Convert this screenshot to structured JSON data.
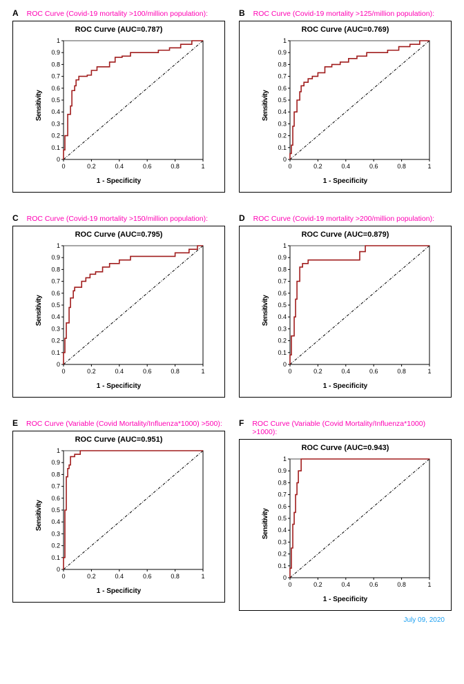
{
  "footer_date": "July 09, 2020",
  "axis_style": {
    "tick_fontsize": 9,
    "label_fontsize": 10,
    "title_fontsize": 11,
    "caption_fontsize": 10.5,
    "caption_color": "#ff00b3",
    "line_color": "#a01c1c",
    "line_width": 1.6,
    "diag_color": "#000000",
    "border_color": "#000000",
    "bg_color": "#ffffff",
    "footer_color": "#1ea1f2"
  },
  "common": {
    "xlabel": "1 - Specificity",
    "ylabel": "Sensitivity",
    "xlim": [
      0,
      1
    ],
    "ylim": [
      0,
      1
    ],
    "xticks": [
      0,
      0.2,
      0.4,
      0.6,
      0.8,
      1
    ],
    "yticks": [
      0,
      0.1,
      0.2,
      0.3,
      0.4,
      0.5,
      0.6,
      0.7,
      0.8,
      0.9,
      1
    ]
  },
  "panels": [
    {
      "letter": "A",
      "caption": "ROC Curve (Covid-19 mortality >100/million population):",
      "title": "ROC Curve (AUC=0.787)",
      "roc": [
        [
          0,
          0
        ],
        [
          0.01,
          0.08
        ],
        [
          0.03,
          0.2
        ],
        [
          0.05,
          0.38
        ],
        [
          0.06,
          0.45
        ],
        [
          0.08,
          0.58
        ],
        [
          0.09,
          0.62
        ],
        [
          0.11,
          0.67
        ],
        [
          0.14,
          0.7
        ],
        [
          0.17,
          0.7
        ],
        [
          0.2,
          0.71
        ],
        [
          0.24,
          0.75
        ],
        [
          0.28,
          0.78
        ],
        [
          0.33,
          0.78
        ],
        [
          0.37,
          0.82
        ],
        [
          0.42,
          0.86
        ],
        [
          0.48,
          0.87
        ],
        [
          0.54,
          0.9
        ],
        [
          0.6,
          0.9
        ],
        [
          0.68,
          0.9
        ],
        [
          0.76,
          0.92
        ],
        [
          0.84,
          0.94
        ],
        [
          0.92,
          0.97
        ],
        [
          1,
          1
        ]
      ]
    },
    {
      "letter": "B",
      "caption": "ROC Curve (Covid-19 mortality >125/million population):",
      "title": "ROC Curve (AUC=0.769)",
      "roc": [
        [
          0,
          0
        ],
        [
          0.01,
          0.05
        ],
        [
          0.02,
          0.12
        ],
        [
          0.03,
          0.28
        ],
        [
          0.05,
          0.4
        ],
        [
          0.07,
          0.5
        ],
        [
          0.08,
          0.57
        ],
        [
          0.1,
          0.62
        ],
        [
          0.13,
          0.65
        ],
        [
          0.16,
          0.68
        ],
        [
          0.2,
          0.7
        ],
        [
          0.25,
          0.73
        ],
        [
          0.3,
          0.78
        ],
        [
          0.36,
          0.8
        ],
        [
          0.42,
          0.82
        ],
        [
          0.48,
          0.85
        ],
        [
          0.55,
          0.87
        ],
        [
          0.62,
          0.9
        ],
        [
          0.7,
          0.9
        ],
        [
          0.78,
          0.92
        ],
        [
          0.86,
          0.95
        ],
        [
          0.93,
          0.97
        ],
        [
          1,
          1
        ]
      ]
    },
    {
      "letter": "C",
      "caption": "ROC Curve (Covid-19 mortality >150/million population):",
      "title": "ROC Curve (AUC=0.795)",
      "roc": [
        [
          0,
          0
        ],
        [
          0.01,
          0.1
        ],
        [
          0.02,
          0.22
        ],
        [
          0.04,
          0.35
        ],
        [
          0.05,
          0.48
        ],
        [
          0.07,
          0.56
        ],
        [
          0.08,
          0.62
        ],
        [
          0.1,
          0.65
        ],
        [
          0.13,
          0.65
        ],
        [
          0.16,
          0.7
        ],
        [
          0.19,
          0.73
        ],
        [
          0.23,
          0.76
        ],
        [
          0.28,
          0.78
        ],
        [
          0.33,
          0.82
        ],
        [
          0.4,
          0.85
        ],
        [
          0.48,
          0.88
        ],
        [
          0.55,
          0.91
        ],
        [
          0.62,
          0.91
        ],
        [
          0.7,
          0.91
        ],
        [
          0.8,
          0.91
        ],
        [
          0.9,
          0.94
        ],
        [
          0.96,
          0.97
        ],
        [
          1,
          1
        ]
      ]
    },
    {
      "letter": "D",
      "caption": "ROC Curve (Covid-19 mortality >200/million population):",
      "title": "ROC Curve (AUC=0.879)",
      "roc": [
        [
          0,
          0
        ],
        [
          0.01,
          0.08
        ],
        [
          0.02,
          0.24
        ],
        [
          0.03,
          0.24
        ],
        [
          0.04,
          0.4
        ],
        [
          0.05,
          0.55
        ],
        [
          0.07,
          0.7
        ],
        [
          0.09,
          0.82
        ],
        [
          0.13,
          0.85
        ],
        [
          0.18,
          0.88
        ],
        [
          0.25,
          0.88
        ],
        [
          0.32,
          0.88
        ],
        [
          0.4,
          0.88
        ],
        [
          0.5,
          0.88
        ],
        [
          0.54,
          0.95
        ],
        [
          0.56,
          1.0
        ],
        [
          0.7,
          1.0
        ],
        [
          0.85,
          1.0
        ],
        [
          1,
          1
        ]
      ]
    },
    {
      "letter": "E",
      "caption": "ROC Curve (Variable (Covid Mortality/Influenza*1000) >500):",
      "title": "ROC Curve (AUC=0.951)",
      "roc": [
        [
          0,
          0
        ],
        [
          0.01,
          0.1
        ],
        [
          0.01,
          0.3
        ],
        [
          0.02,
          0.5
        ],
        [
          0.02,
          0.68
        ],
        [
          0.03,
          0.78
        ],
        [
          0.04,
          0.85
        ],
        [
          0.05,
          0.88
        ],
        [
          0.08,
          0.95
        ],
        [
          0.12,
          0.97
        ],
        [
          0.14,
          1.0
        ],
        [
          0.3,
          1.0
        ],
        [
          0.5,
          1.0
        ],
        [
          0.75,
          1.0
        ],
        [
          1,
          1
        ]
      ]
    },
    {
      "letter": "F",
      "caption": "ROC Curve (Variable (Covid Mortality/Influenza*1000) >1000):",
      "title": "ROC Curve (AUC=0.943)",
      "roc": [
        [
          0,
          0
        ],
        [
          0.01,
          0.08
        ],
        [
          0.02,
          0.25
        ],
        [
          0.02,
          0.4
        ],
        [
          0.03,
          0.45
        ],
        [
          0.04,
          0.55
        ],
        [
          0.05,
          0.7
        ],
        [
          0.06,
          0.8
        ],
        [
          0.08,
          0.9
        ],
        [
          0.1,
          1.0
        ],
        [
          0.25,
          1.0
        ],
        [
          0.5,
          1.0
        ],
        [
          0.75,
          1.0
        ],
        [
          1,
          1
        ]
      ]
    }
  ]
}
